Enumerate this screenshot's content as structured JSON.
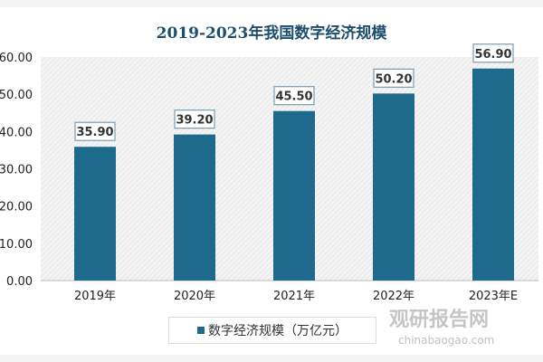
{
  "chart_data": {
    "type": "bar",
    "title": "2019-2023年我国数字经济规模",
    "categories": [
      "2019年",
      "2020年",
      "2021年",
      "2022年",
      "2023年E"
    ],
    "series": [
      {
        "name": "数字经济规模（万亿元）",
        "values": [
          35.9,
          39.2,
          45.5,
          50.2,
          56.9
        ]
      }
    ],
    "data_labels": [
      "35.90",
      "39.20",
      "45.50",
      "50.20",
      "56.90"
    ],
    "yticks": [
      "0.00",
      "10.00",
      "20.00",
      "30.00",
      "40.00",
      "50.00",
      "60.00"
    ],
    "ylim": [
      0,
      60
    ],
    "legend_position": "bottom",
    "bar_color": "#1e6a8d",
    "grid": false
  },
  "watermark": {
    "name": "观研报告网",
    "url": "chinabaogao.com"
  }
}
